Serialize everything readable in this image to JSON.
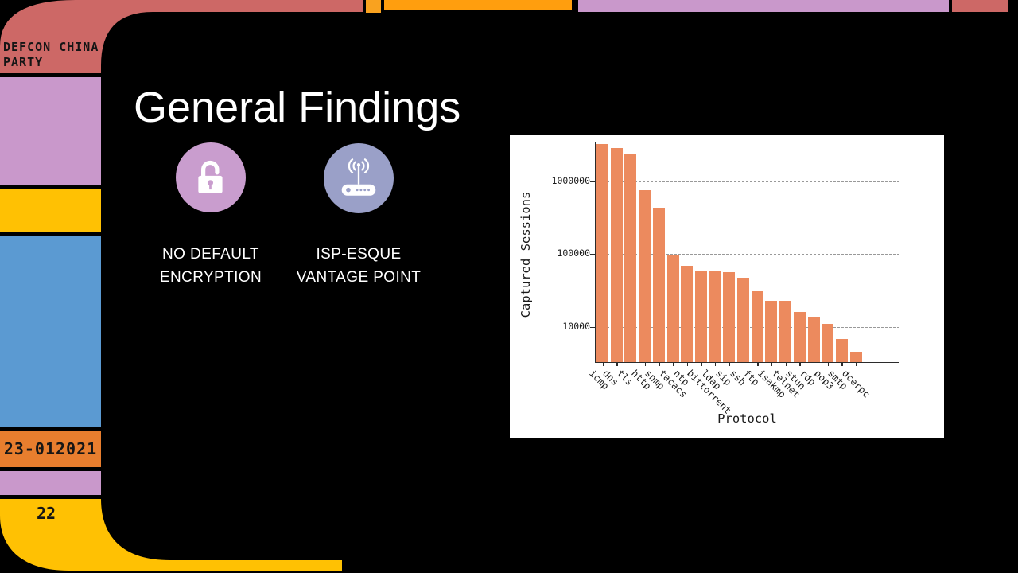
{
  "slide": {
    "title": "General Findings",
    "corner_label_lines": [
      "DEFCON CHINA",
      "PARTY"
    ],
    "date_label": "23-012021",
    "page_number": "22"
  },
  "features": [
    {
      "icon": "unlock-icon",
      "label_line1": "NO DEFAULT",
      "label_line2": "ENCRYPTION",
      "circle_color": "#c99dce"
    },
    {
      "icon": "router-wifi-icon",
      "label_line1": "ISP-ESQUE",
      "label_line2": "VANTAGE POINT",
      "circle_color": "#9aa0c8"
    }
  ],
  "chart_data": {
    "type": "bar",
    "title": "",
    "xlabel": "Protocol",
    "ylabel": "Captured Sessions",
    "y_scale": "log",
    "ylim": [
      3300,
      3600000
    ],
    "y_ticks": [
      1000000,
      100000,
      10000
    ],
    "y_tick_labels": [
      "1000000",
      "100000",
      "10000"
    ],
    "grid": "horizontal dashed",
    "legend": "none",
    "x_tick_label_rotation_deg": 45,
    "bar_color": "#ec8a5e",
    "categories": [
      "icmp",
      "dns",
      "tls",
      "http",
      "snmp",
      "tacacs",
      "ntp",
      "bittorrent",
      "ldap",
      "sip",
      "ssh",
      "ftp",
      "isakmp",
      "telnet",
      "stun",
      "rdp",
      "pop3",
      "smtp",
      "dcerpc"
    ],
    "values": [
      3300000,
      2900000,
      2400000,
      750000,
      440000,
      98000,
      70000,
      58000,
      58000,
      57000,
      47000,
      31000,
      23000,
      23000,
      16000,
      14000,
      11000,
      6800,
      4600
    ]
  },
  "theme": {
    "red": "#cd6866",
    "plum": "#c998cb",
    "gold": "#ffc103",
    "blue": "#5b9ad2",
    "orange": "#e87e2e",
    "top_orange_small": "#f9a21f",
    "top_orange_bar": "#ff9e0e",
    "background": "#000000",
    "chart_background": "#ffffff",
    "text_on_dark": "#ffffff",
    "text_on_blocks": "#161616"
  }
}
